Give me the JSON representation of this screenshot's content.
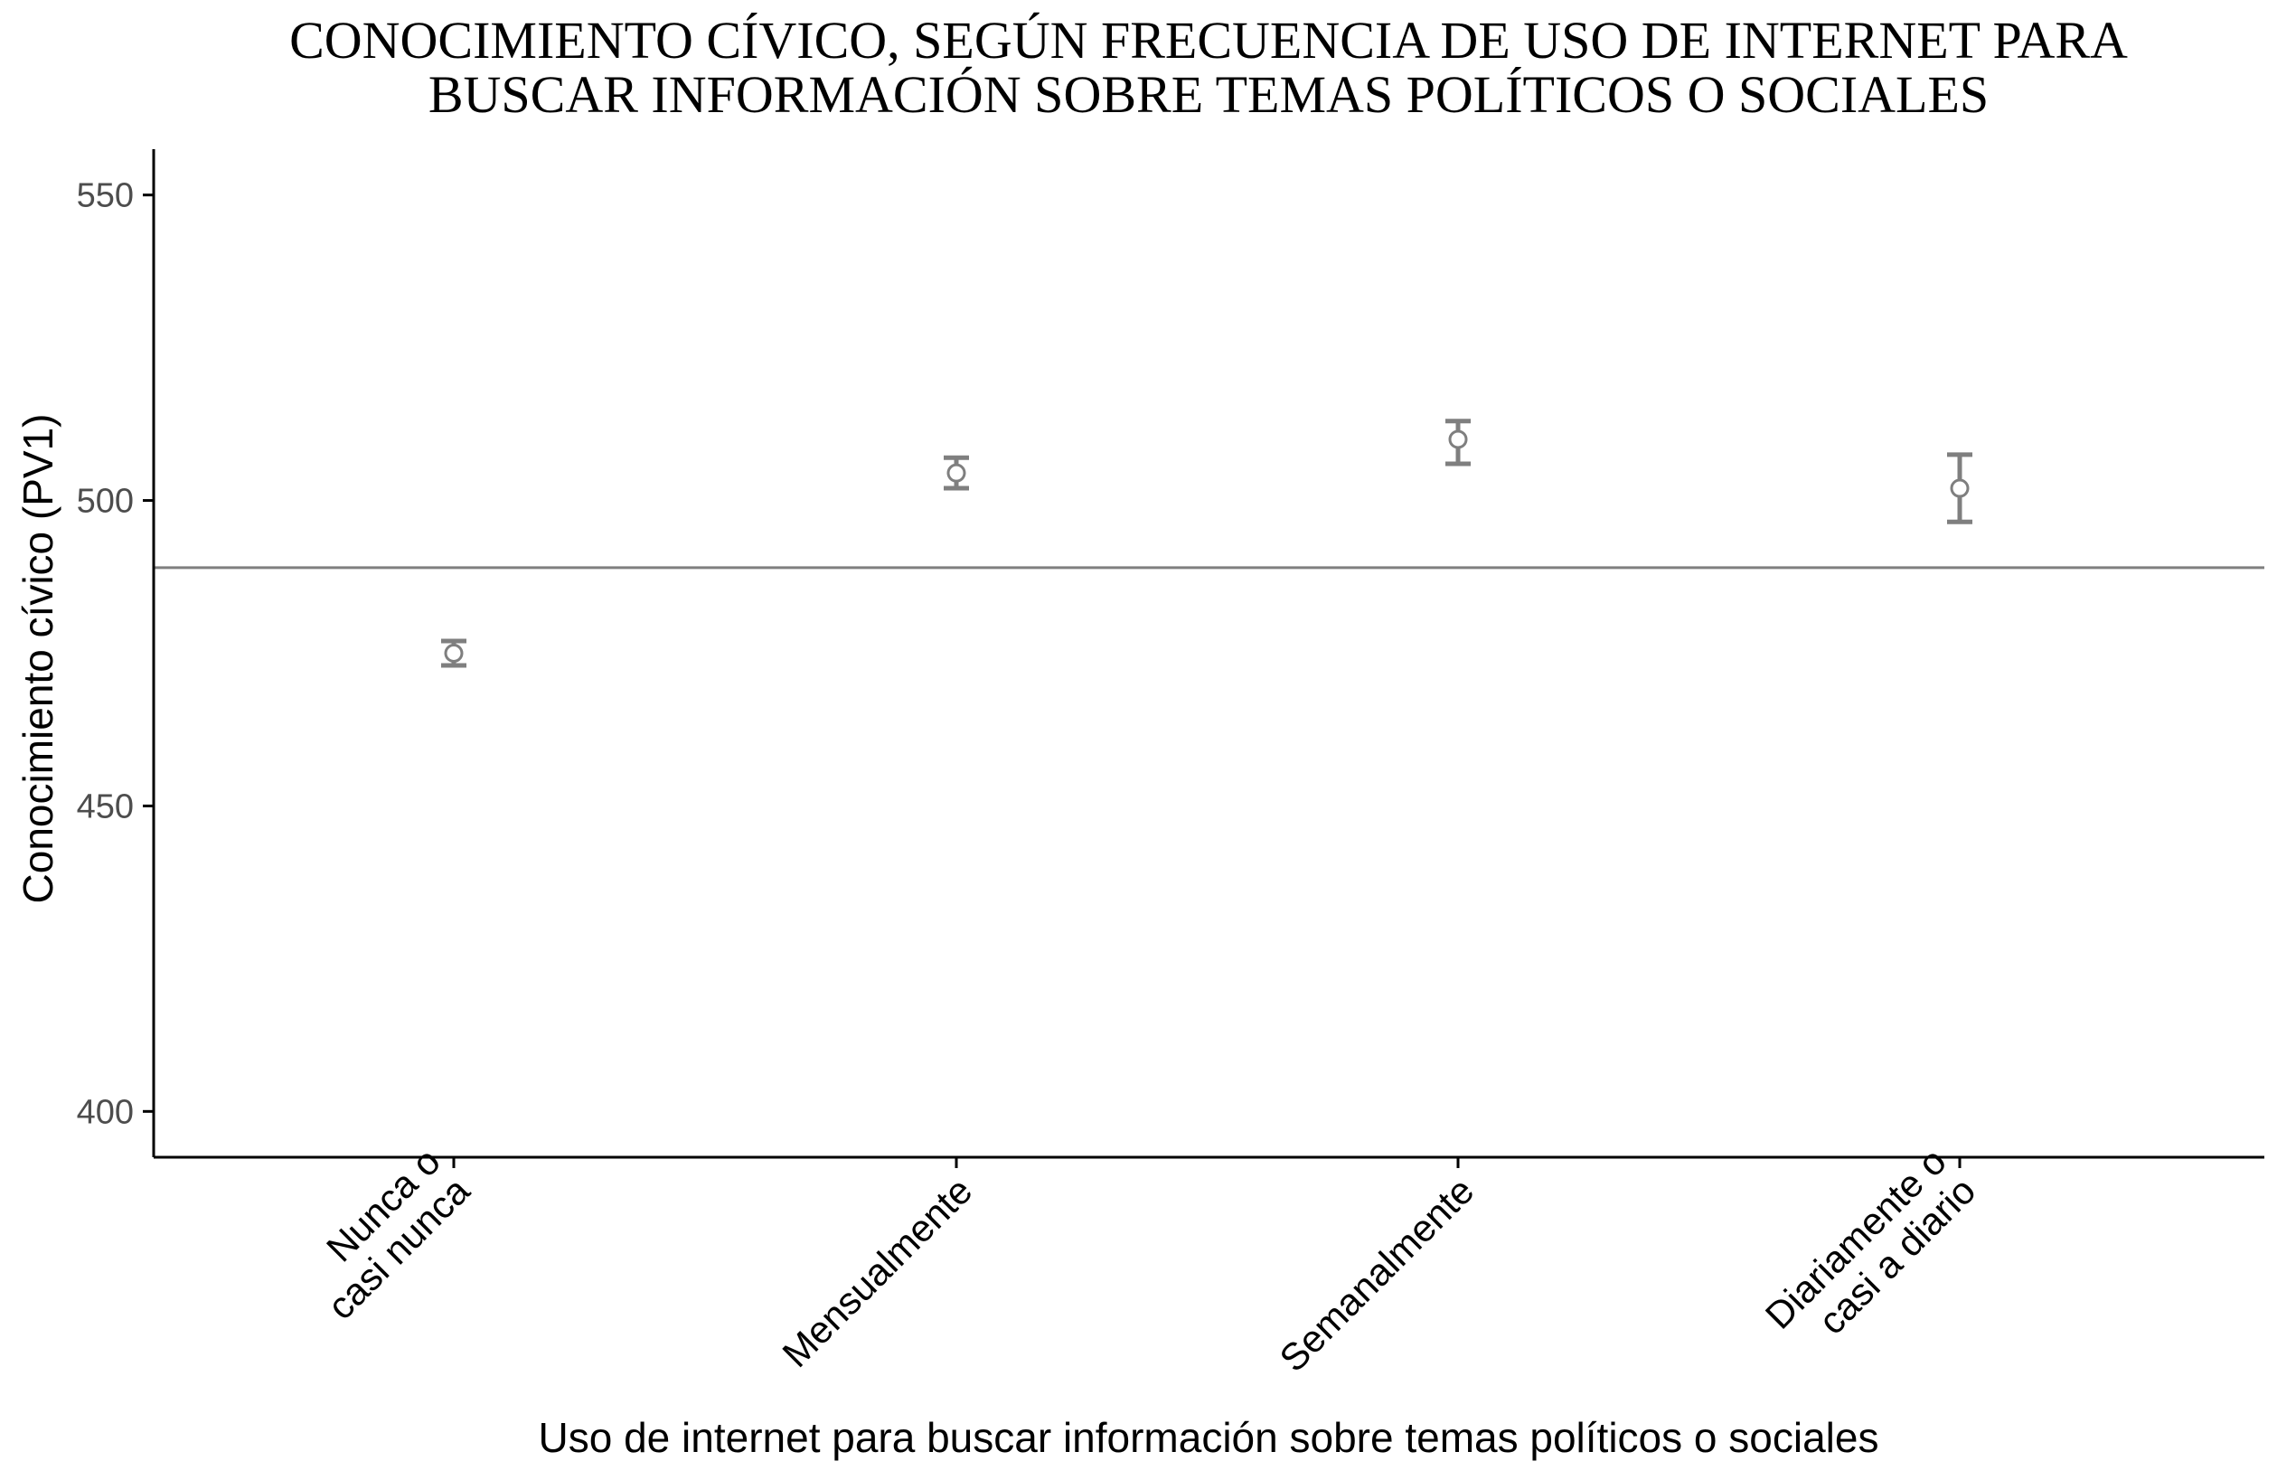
{
  "chart_data": {
    "type": "scatter",
    "title_lines": [
      "CONOCIMIENTO CÍVICO, SEGÚN FRECUENCIA DE USO DE INTERNET PARA",
      "BUSCAR INFORMACIÓN SOBRE TEMAS POLÍTICOS O SOCIALES"
    ],
    "xlabel": "Uso de internet para buscar información sobre temas políticos o sociales",
    "ylabel": "Conocimiento cívico (PV1)",
    "ylim": [
      392.5,
      557.5
    ],
    "yticks": [
      400,
      450,
      500,
      550
    ],
    "grid": false,
    "reference_line": 489,
    "categories": [
      {
        "label_lines": [
          "Nunca o",
          "casi nunca"
        ],
        "value": 475,
        "lower": 473,
        "upper": 477
      },
      {
        "label_lines": [
          "Mensualmente"
        ],
        "value": 504.5,
        "lower": 502,
        "upper": 507
      },
      {
        "label_lines": [
          "Semanalmente"
        ],
        "value": 510,
        "lower": 506,
        "upper": 513
      },
      {
        "label_lines": [
          "Diariamente o",
          "casi a diario"
        ],
        "value": 502,
        "lower": 496.5,
        "upper": 507.5
      }
    ],
    "colors": {
      "points": "#7f7f7f",
      "reference_line": "#7f7f7f",
      "axis": "#000000"
    }
  }
}
